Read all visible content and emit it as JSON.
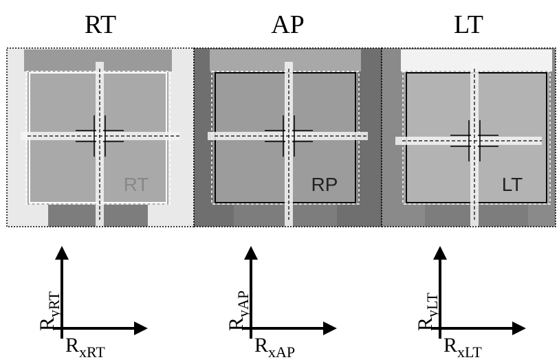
{
  "panels": [
    {
      "title": "RT",
      "cube_label": "RT",
      "y_axis": {
        "base": "R",
        "sub": "yRT"
      },
      "x_axis": {
        "base": "R",
        "sub": "xRT"
      }
    },
    {
      "title": "AP",
      "cube_label": "RP",
      "y_axis": {
        "base": "R",
        "sub": "yAP"
      },
      "x_axis": {
        "base": "R",
        "sub": "xAP"
      }
    },
    {
      "title": "LT",
      "cube_label": "LT",
      "y_axis": {
        "base": "R",
        "sub": "yLT"
      },
      "x_axis": {
        "base": "R",
        "sub": "xLT"
      }
    }
  ]
}
